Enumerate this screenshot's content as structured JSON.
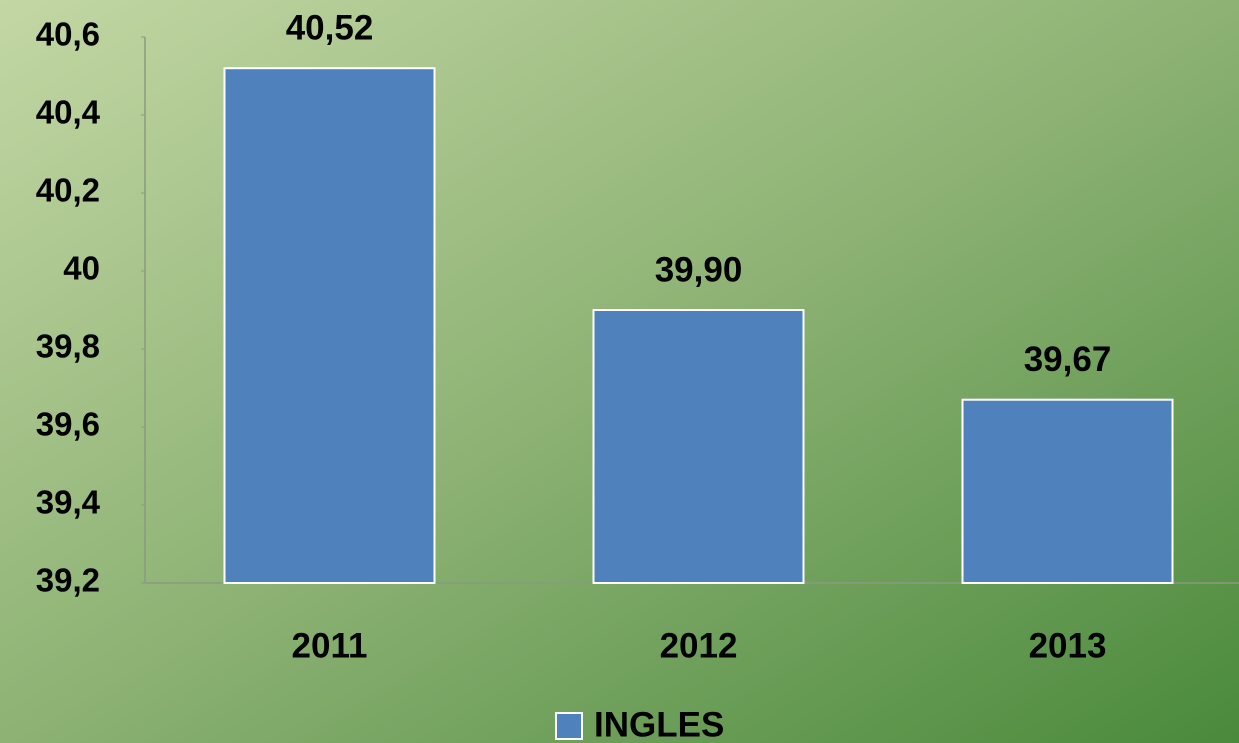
{
  "chart_data": {
    "type": "bar",
    "categories": [
      "2011",
      "2012",
      "2013"
    ],
    "series": [
      {
        "name": "INGLES",
        "color": "#4f81bd",
        "values": [
          40.52,
          39.9,
          39.67
        ],
        "value_labels": [
          "40,52",
          "39,90",
          "39,67"
        ]
      }
    ],
    "ylim": [
      39.2,
      40.6
    ],
    "yticks": [
      {
        "value": 39.2,
        "label": "39,2"
      },
      {
        "value": 39.4,
        "label": "39,4"
      },
      {
        "value": 39.6,
        "label": "39,6"
      },
      {
        "value": 39.8,
        "label": "39,8"
      },
      40,
      {
        "value": 40.2,
        "label": "40,2"
      },
      {
        "value": 40.4,
        "label": "40,4"
      },
      {
        "value": 40.6,
        "label": "40,6"
      }
    ],
    "grid": false,
    "legend": "bottom"
  }
}
